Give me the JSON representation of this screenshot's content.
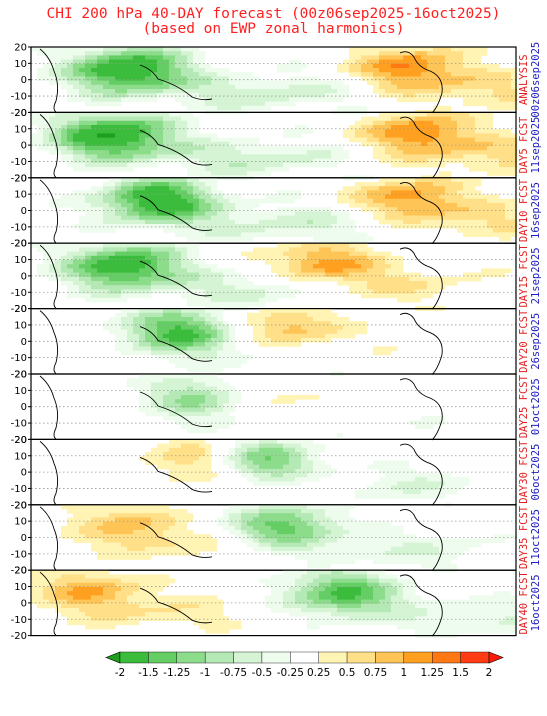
{
  "title_line1": "CHI 200 hPa 40-DAY forecast (00z06sep2025-16oct2025)",
  "title_line2": "(based on EWP zonal harmonics)",
  "chart_data": {
    "type": "heatmap",
    "variable": "CHI 200 hPa",
    "yticks": [
      20,
      10,
      0,
      -10,
      -20
    ],
    "ylim": [
      -20,
      20
    ],
    "panels": [
      {
        "label_top": "ANALYSIS",
        "label_bottom": "00z06sep2025",
        "pos": [
          0.18,
          0.28
        ],
        "neg": [
          0.78,
          0.6
        ]
      },
      {
        "label_top": "DAY5 FCST",
        "label_bottom": "11sep2025",
        "pos": [
          0.15,
          0.3
        ],
        "neg": [
          0.8,
          0.82
        ]
      },
      {
        "label_top": "DAY10 FCST",
        "label_bottom": "16sep2025",
        "pos": [
          0.24,
          0.2
        ],
        "neg": [
          0.78,
          0.75
        ]
      },
      {
        "label_top": "DAY15 FCST",
        "label_bottom": "21sep2025",
        "pos": [
          0.17,
          0.2
        ],
        "neg": [
          0.6,
          1.2
        ]
      },
      {
        "label_top": "DAY20 FCST",
        "label_bottom": "26sep2025",
        "pos": [
          0.29,
          0.04
        ],
        "neg": [
          0.52,
          1.3
        ]
      },
      {
        "label_top": "DAY25 FCST",
        "label_bottom": "01oct2025",
        "pos": [
          0.35,
          -0.05
        ],
        "neg": [
          0.45,
          1.2
        ]
      },
      {
        "label_top": "DAY30 FCST",
        "label_bottom": "06oct2025",
        "pos": [
          0.45,
          0.0
        ],
        "neg": [
          0.35,
          1.4
        ]
      },
      {
        "label_top": "DAY35 FCST",
        "label_bottom": "11oct2025",
        "pos": [
          0.5,
          -0.08
        ],
        "neg": [
          0.2,
          0.9
        ]
      },
      {
        "label_top": "DAY40 FCST",
        "label_bottom": "16oct2025",
        "pos": [
          0.62,
          0.0
        ],
        "neg": [
          0.12,
          1.1
        ]
      }
    ],
    "colorbar": {
      "labels": [
        "-2",
        "-1.5",
        "-1.25",
        "-1",
        "-0.75",
        "-0.5",
        "-0.25",
        "0.25",
        "0.5",
        "0.75",
        "1",
        "1.25",
        "1.5",
        "2"
      ],
      "colors": [
        "#1ea01e",
        "#3cbc3c",
        "#64cd64",
        "#8cdc8c",
        "#b4e8b4",
        "#d4f4d4",
        "#eefcee",
        "#ffffff",
        "#fff4b4",
        "#ffe088",
        "#ffc456",
        "#ffa020",
        "#ff7814",
        "#ff3c14",
        "#ff1a0a"
      ]
    }
  }
}
